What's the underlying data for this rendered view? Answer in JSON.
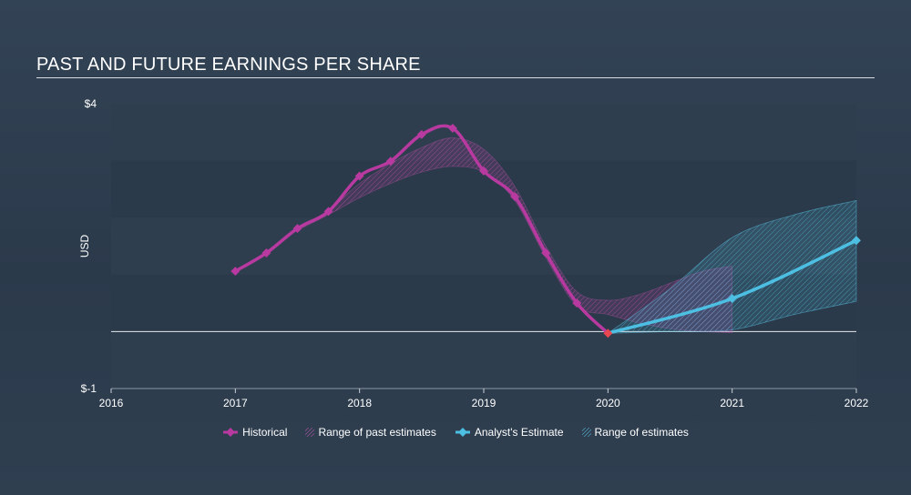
{
  "title": "PAST AND FUTURE EARNINGS PER SHARE",
  "colors": {
    "historical": "#b83aa0",
    "estimate": "#4cbfe2",
    "last_point": "#e8474f"
  },
  "chart_data": {
    "type": "line",
    "title": "PAST AND FUTURE EARNINGS PER SHARE",
    "ylabel": "USD",
    "xlabel": "",
    "xlim": [
      2016,
      2022
    ],
    "ylim": [
      -1,
      4
    ],
    "x_ticks": [
      "2016",
      "2017",
      "2018",
      "2019",
      "2020",
      "2021",
      "2022"
    ],
    "y_ticks": [
      "$4",
      "$-1"
    ],
    "zero_line": 0,
    "series": [
      {
        "name": "Historical",
        "x": [
          2017.0,
          2017.25,
          2017.5,
          2017.75,
          2018.0,
          2018.25,
          2018.5,
          2018.75,
          2019.0,
          2019.25,
          2019.5,
          2019.75,
          2020.0
        ],
        "y": [
          1.06,
          1.38,
          1.81,
          2.11,
          2.73,
          2.99,
          3.46,
          3.57,
          2.82,
          2.37,
          1.38,
          0.5,
          -0.03
        ]
      },
      {
        "name": "Range of past estimates",
        "x": [
          2017.5,
          2017.75,
          2018.0,
          2018.25,
          2018.5,
          2018.75,
          2019.0,
          2019.25,
          2019.5,
          2019.75,
          2020.0,
          2020.25,
          2020.5,
          2020.75,
          2021.0
        ],
        "upper": [
          1.8,
          2.13,
          2.6,
          2.95,
          3.23,
          3.4,
          3.2,
          2.55,
          1.5,
          0.7,
          0.55,
          0.65,
          0.85,
          1.05,
          1.15
        ],
        "lower": [
          1.78,
          2.05,
          2.35,
          2.6,
          2.8,
          2.9,
          2.8,
          2.3,
          1.3,
          0.45,
          0.3,
          0.15,
          0.05,
          0.0,
          -0.02
        ]
      },
      {
        "name": "Analyst's Estimate",
        "x": [
          2020.0,
          2021.0,
          2022.0
        ],
        "y": [
          -0.03,
          0.58,
          1.6
        ]
      },
      {
        "name": "Range of estimates",
        "x": [
          2020.0,
          2020.5,
          2021.0,
          2021.5,
          2022.0
        ],
        "upper": [
          -0.03,
          0.75,
          1.65,
          2.05,
          2.3
        ],
        "lower": [
          -0.03,
          0.0,
          0.03,
          0.3,
          0.53
        ]
      }
    ],
    "legend": [
      "Historical",
      "Range of past estimates",
      "Analyst's Estimate",
      "Range of estimates"
    ],
    "legend_position": "bottom-center"
  }
}
